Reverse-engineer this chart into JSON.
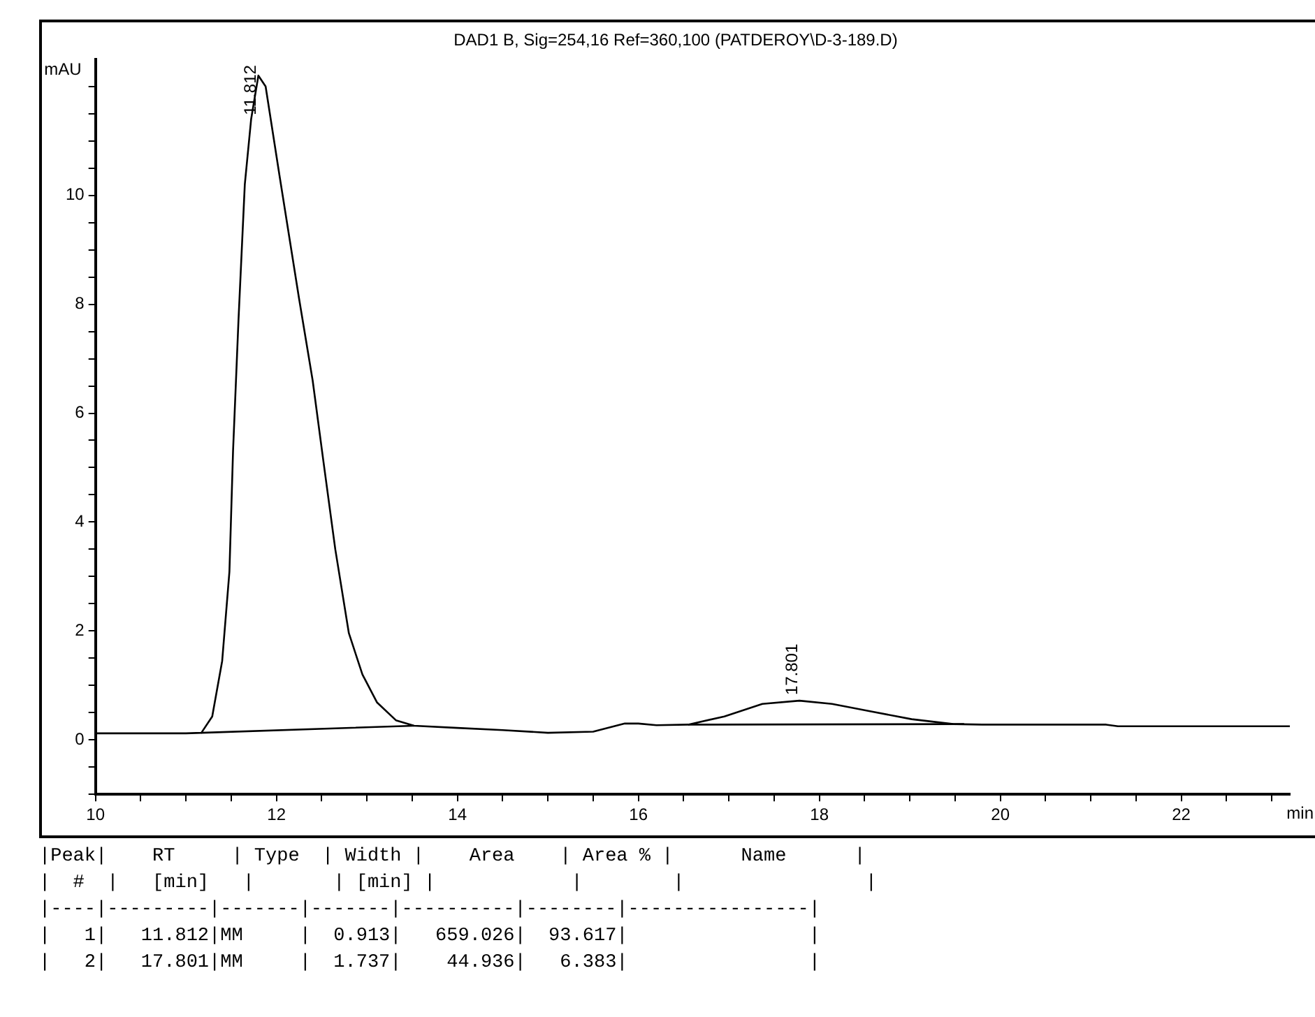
{
  "chart_data": {
    "type": "line",
    "title": "DAD1 B, Sig=254,16 Ref=360,100 (PATDEROY\\D-3-189.D)",
    "xlabel": "min",
    "ylabel": "mAU",
    "series": [
      {
        "color": "#000000",
        "x": [
          10,
          10.5,
          11,
          11.17,
          11.29,
          11.4,
          11.48,
          11.52,
          11.58,
          11.65,
          11.72,
          11.8,
          11.88,
          12.03,
          12.25,
          12.4,
          12.52,
          12.65,
          12.8,
          12.95,
          13.11,
          13.32,
          13.52,
          14,
          14.5,
          15,
          15.5,
          15.85,
          16,
          16.2,
          16.55,
          16.95,
          17.37,
          17.78,
          18.14,
          18.55,
          19.02,
          19.48,
          19.8,
          20.5,
          21.17,
          21.3,
          22,
          23.2
        ],
        "values": [
          0.12,
          0.12,
          0.12,
          0.13,
          0.43,
          1.45,
          3.09,
          5.3,
          7.7,
          10.2,
          11.4,
          12.2,
          12.0,
          10.4,
          8.1,
          6.6,
          5.1,
          3.5,
          1.96,
          1.2,
          0.69,
          0.36,
          0.26,
          0.22,
          0.18,
          0.13,
          0.15,
          0.3,
          0.3,
          0.27,
          0.28,
          0.43,
          0.66,
          0.72,
          0.66,
          0.53,
          0.38,
          0.29,
          0.28,
          0.28,
          0.28,
          0.25,
          0.25,
          0.25
        ]
      },
      {
        "color": "#000000",
        "x": [
          11.17,
          13.52,
          15,
          16.55,
          19.6
        ],
        "values": [
          0.13,
          0.26,
          null,
          0.28,
          0.29
        ]
      }
    ],
    "xlim": [
      10,
      23.2
    ],
    "ylim": [
      -1,
      12.5
    ],
    "xticks": [
      10,
      {
        "value": 10.5,
        "label": null
      },
      {
        "value": 11,
        "label": null
      },
      {
        "value": 11.5,
        "label": null
      },
      12,
      {
        "value": 12.5,
        "label": null
      },
      {
        "value": 13,
        "label": null
      },
      {
        "value": 13.5,
        "label": null
      },
      14,
      {
        "value": 14.5,
        "label": null
      },
      {
        "value": 15,
        "label": null
      },
      {
        "value": 15.5,
        "label": null
      },
      16,
      {
        "value": 16.5,
        "label": null
      },
      {
        "value": 17,
        "label": null
      },
      {
        "value": 17.5,
        "label": null
      },
      18,
      {
        "value": 18.5,
        "label": null
      },
      {
        "value": 19,
        "label": null
      },
      {
        "value": 19.5,
        "label": null
      },
      20,
      {
        "value": 20.5,
        "label": null
      },
      {
        "value": 21,
        "label": null
      },
      {
        "value": 21.5,
        "label": null
      },
      22,
      {
        "value": 22.5,
        "label": null
      },
      {
        "value": 23,
        "label": null
      }
    ],
    "yticks": [
      {
        "value": -1,
        "label": null
      },
      {
        "value": -0.5,
        "label": null
      },
      0,
      {
        "value": 0.5,
        "label": null
      },
      {
        "value": 1,
        "label": null
      },
      {
        "value": 1.5,
        "label": null
      },
      2,
      {
        "value": 2.5,
        "label": null
      },
      {
        "value": 3,
        "label": null
      },
      {
        "value": 3.5,
        "label": null
      },
      4,
      {
        "value": 4.5,
        "label": null
      },
      {
        "value": 5,
        "label": null
      },
      {
        "value": 5.5,
        "label": null
      },
      6,
      {
        "value": 6.5,
        "label": null
      },
      {
        "value": 7,
        "label": null
      },
      {
        "value": 7.5,
        "label": null
      },
      8,
      {
        "value": 8.5,
        "label": null
      },
      {
        "value": 9,
        "label": null
      },
      {
        "value": 9.5,
        "label": null
      },
      10,
      {
        "value": 10.5,
        "label": null
      },
      {
        "value": 11,
        "label": null
      },
      {
        "value": 11.5,
        "label": null
      },
      {
        "value": 12,
        "label": null
      }
    ],
    "grid": false,
    "legend": false,
    "marker": "none",
    "line_style": "solid",
    "annotations": [
      {
        "text": "11.812",
        "x": 11.812,
        "y": 12.2
      },
      {
        "text": "17.801",
        "x": 17.801,
        "y": 0.72
      },
      "|Peak|    RT     | Type  | Width |    Area    | Area % |      Name      |",
      "|  #  |   [min]   |       | [min] |            |        |                |",
      "|----|---------|-------|-------|----------|--------|----------------|",
      "|   1|   11.812|MM     |  0.913|   659.026|  93.617|                |",
      "|   2|   17.801|MM     |  1.737|    44.936|   6.383|                |"
    ]
  }
}
